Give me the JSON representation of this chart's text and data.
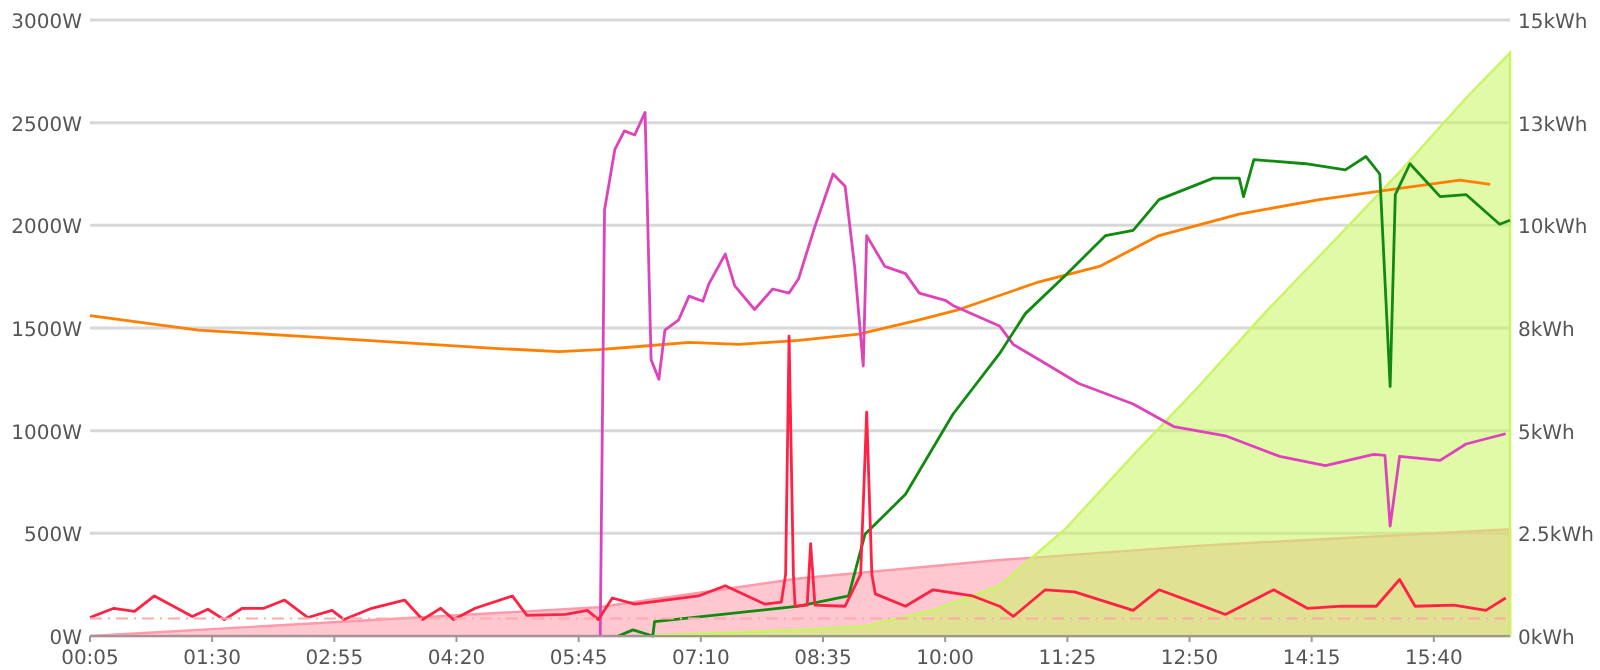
{
  "chart_data": {
    "type": "line",
    "xlim": [
      0.0833,
      16.55
    ],
    "xticks": [
      {
        "value": 0.0833,
        "label": "00:05"
      },
      {
        "value": 1.5,
        "label": "01:30"
      },
      {
        "value": 2.9167,
        "label": "02:55"
      },
      {
        "value": 4.3333,
        "label": "04:20"
      },
      {
        "value": 5.75,
        "label": "05:45"
      },
      {
        "value": 7.1667,
        "label": "07:10"
      },
      {
        "value": 8.5833,
        "label": "08:35"
      },
      {
        "value": 10,
        "label": "10:00"
      },
      {
        "value": 11.4167,
        "label": "11:25"
      },
      {
        "value": 12.8333,
        "label": "12:50"
      },
      {
        "value": 14.25,
        "label": "14:15"
      },
      {
        "value": 15.6667,
        "label": "15:40"
      }
    ],
    "ylim": [
      0,
      3000
    ],
    "yticks": [
      {
        "value": 0,
        "label": "0W"
      },
      {
        "value": 500,
        "label": "500W"
      },
      {
        "value": 1000,
        "label": "1000W"
      },
      {
        "value": 1500,
        "label": "1500W"
      },
      {
        "value": 2000,
        "label": "2000W"
      },
      {
        "value": 2500,
        "label": "2500W"
      },
      {
        "value": 3000,
        "label": "3000W"
      }
    ],
    "y2lim": [
      0,
      15
    ],
    "y2ticks": [
      {
        "value": 0,
        "label": "0kWh"
      },
      {
        "value": 2.5,
        "label": "2.5kWh"
      },
      {
        "value": 5,
        "label": "5kWh"
      },
      {
        "value": 7.5,
        "label": "8kWh"
      },
      {
        "value": 10,
        "label": "10kWh"
      },
      {
        "value": 12.5,
        "label": "13kWh"
      },
      {
        "value": 15,
        "label": "15kWh"
      }
    ],
    "grid": "y",
    "ref_lines": [
      {
        "axis": "y",
        "value": 85,
        "color": "#ffaaaa",
        "line_style": "dashed"
      }
    ],
    "series": [
      {
        "type": "area",
        "axis": "y2",
        "color": "#ff9aaa",
        "x": [
          0.0833,
          5.98,
          8.3,
          10.63,
          12.95,
          16.55
        ],
        "values": [
          0,
          0.7,
          1.4,
          1.85,
          2.2,
          2.6
        ]
      },
      {
        "type": "area",
        "axis": "y2",
        "color": "#c8f560",
        "x": [
          6.45,
          8.3,
          9.07,
          9.86,
          10.63,
          11.39,
          12.18,
          12.95,
          13.72,
          14.5,
          15.27,
          16.04,
          16.55
        ],
        "values": [
          0,
          0.15,
          0.24,
          0.63,
          1.22,
          2.6,
          4.4,
          6.1,
          7.9,
          9.6,
          11.3,
          13.1,
          14.2
        ]
      },
      {
        "color": "#ff7f00",
        "x": [
          0.0833,
          1.34,
          2.5,
          3.66,
          4.82,
          5.52,
          5.98,
          6.45,
          7.03,
          7.61,
          8.3,
          9.0,
          9.7,
          10.16,
          11.09,
          11.79,
          12.48,
          13.41,
          14.34,
          15.27,
          15.97,
          16.32
        ],
        "values": [
          1560,
          1490,
          1460,
          1430,
          1400,
          1385,
          1395,
          1410,
          1430,
          1420,
          1440,
          1470,
          1540,
          1590,
          1725,
          1800,
          1950,
          2055,
          2125,
          2180,
          2220,
          2200
        ]
      },
      {
        "color": "#dd44bb",
        "x": [
          6.0,
          6.05,
          6.17,
          6.28,
          6.4,
          6.52,
          6.59,
          6.68,
          6.75,
          6.91,
          7.03,
          7.19,
          7.26,
          7.45,
          7.56,
          7.79,
          8.0,
          8.19,
          8.3,
          8.49,
          8.7,
          8.84,
          8.95,
          9.05,
          9.09,
          9.3,
          9.54,
          9.7,
          10.0,
          10.09,
          10.63,
          10.79,
          11.09,
          11.55,
          12.18,
          12.65,
          13.25,
          13.88,
          14.41,
          14.97,
          15.1,
          15.16,
          15.27,
          15.74,
          16.04,
          16.5
        ],
        "values": [
          0,
          2075,
          2370,
          2460,
          2440,
          2550,
          1345,
          1250,
          1490,
          1540,
          1655,
          1630,
          1715,
          1860,
          1705,
          1590,
          1690,
          1670,
          1740,
          1995,
          2250,
          2190,
          1800,
          1315,
          1950,
          1800,
          1765,
          1670,
          1635,
          1610,
          1510,
          1420,
          1345,
          1230,
          1130,
          1020,
          975,
          875,
          830,
          885,
          880,
          535,
          875,
          855,
          935,
          985
        ]
      },
      {
        "color": "#108a10",
        "x": [
          6.21,
          6.38,
          6.61,
          6.63,
          8.3,
          8.88,
          9.07,
          9.54,
          10.09,
          10.63,
          10.93,
          11.39,
          11.86,
          12.18,
          12.48,
          13.11,
          13.41,
          13.46,
          13.58,
          14.18,
          14.64,
          14.88,
          15.04,
          15.16,
          15.22,
          15.39,
          15.74,
          16.04,
          16.43,
          16.55
        ],
        "values": [
          0,
          30,
          0,
          70,
          145,
          195,
          495,
          690,
          1080,
          1375,
          1570,
          1755,
          1950,
          1975,
          2125,
          2230,
          2230,
          2140,
          2320,
          2300,
          2270,
          2335,
          2250,
          1215,
          2150,
          2300,
          2140,
          2150,
          2005,
          2025
        ]
      },
      {
        "color": "#ff2244",
        "x": [
          0.0833,
          0.36,
          0.6,
          0.83,
          1.27,
          1.45,
          1.64,
          1.85,
          2.1,
          2.34,
          2.61,
          2.89,
          3.03,
          3.35,
          3.73,
          3.94,
          4.15,
          4.3,
          4.55,
          4.98,
          5.15,
          5.6,
          5.85,
          5.98,
          6.14,
          6.4,
          7.14,
          7.45,
          7.91,
          8.1,
          8.15,
          8.19,
          8.24,
          8.26,
          8.4,
          8.44,
          8.49,
          8.84,
          9.02,
          9.09,
          9.15,
          9.19,
          9.54,
          9.86,
          10.32,
          10.63,
          10.79,
          11.16,
          11.5,
          12.18,
          12.48,
          12.9,
          13.25,
          13.81,
          14.2,
          14.6,
          15.0,
          15.27,
          15.45,
          15.9,
          16.27,
          16.5
        ],
        "values": [
          90,
          135,
          120,
          195,
          95,
          130,
          80,
          135,
          135,
          175,
          90,
          125,
          80,
          135,
          175,
          80,
          135,
          80,
          135,
          195,
          100,
          105,
          125,
          80,
          185,
          155,
          195,
          245,
          155,
          165,
          300,
          1460,
          300,
          145,
          150,
          450,
          150,
          145,
          300,
          1090,
          300,
          205,
          145,
          225,
          195,
          145,
          95,
          225,
          215,
          125,
          225,
          160,
          105,
          225,
          135,
          145,
          145,
          275,
          145,
          150,
          125,
          185
        ]
      }
    ]
  }
}
